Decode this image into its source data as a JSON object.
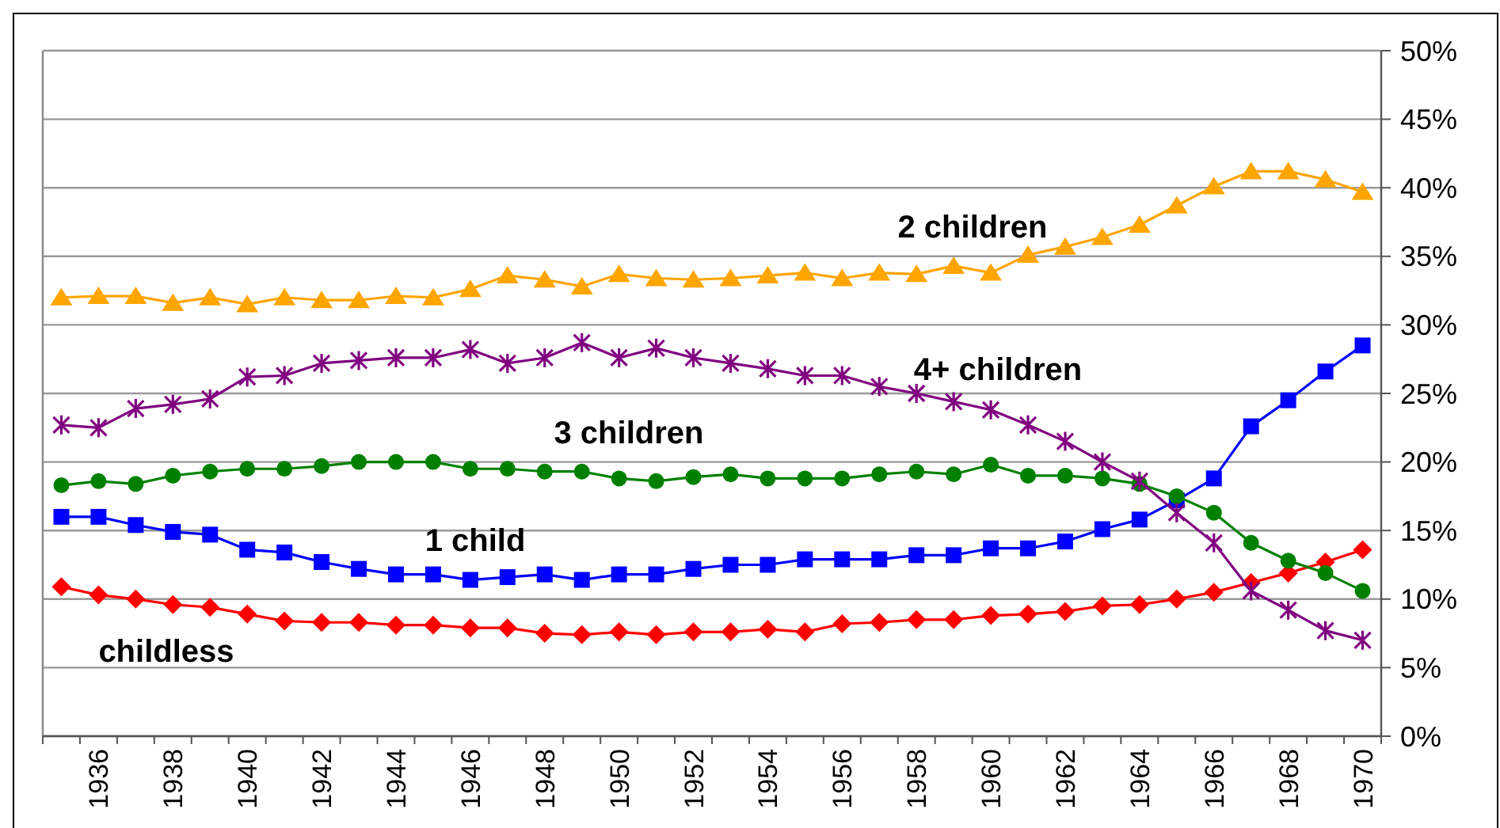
{
  "chart_data": {
    "type": "line",
    "categories": [
      null,
      "1936",
      null,
      "1938",
      null,
      "1940",
      null,
      "1942",
      null,
      "1944",
      null,
      "1946",
      null,
      "1948",
      null,
      "1950",
      null,
      "1952",
      null,
      "1954",
      null,
      "1956",
      null,
      "1958",
      null,
      "1960",
      null,
      "1962",
      null,
      "1964",
      null,
      "1966",
      null,
      "1968",
      null,
      "1970"
    ],
    "series": [
      {
        "name": "childless",
        "color": "#ff0000",
        "marker": "diamond",
        "values": [
          10.9,
          10.3,
          10.0,
          9.6,
          9.4,
          8.9,
          8.4,
          8.3,
          8.3,
          8.1,
          8.1,
          7.9,
          7.9,
          7.5,
          7.4,
          7.6,
          7.4,
          7.6,
          7.6,
          7.8,
          7.6,
          8.2,
          8.3,
          8.5,
          8.5,
          8.8,
          8.9,
          9.1,
          9.5,
          9.6,
          10.0,
          10.5,
          11.2,
          11.9,
          12.7,
          13.6
        ]
      },
      {
        "name": "1 child",
        "color": "#0000ff",
        "marker": "square",
        "values": [
          16.0,
          16.0,
          15.4,
          14.9,
          14.7,
          13.6,
          13.4,
          12.7,
          12.2,
          11.8,
          11.8,
          11.4,
          11.6,
          11.8,
          11.4,
          11.8,
          11.8,
          12.2,
          12.5,
          12.5,
          12.9,
          12.9,
          12.9,
          13.2,
          13.2,
          13.7,
          13.7,
          14.2,
          15.1,
          15.8,
          17.2,
          18.8,
          22.6,
          24.5,
          26.6,
          28.5
        ]
      },
      {
        "name": "2 children",
        "color": "#ffa500",
        "marker": "triangle",
        "values": [
          32.0,
          32.1,
          32.1,
          31.6,
          32.0,
          31.5,
          32.0,
          31.8,
          31.8,
          32.1,
          32.0,
          32.6,
          33.6,
          33.3,
          32.8,
          33.7,
          33.4,
          33.3,
          33.4,
          33.6,
          33.8,
          33.4,
          33.8,
          33.7,
          34.3,
          33.8,
          35.1,
          35.7,
          36.4,
          37.3,
          38.7,
          40.1,
          41.2,
          41.2,
          40.6,
          39.7
        ]
      },
      {
        "name": "3 children",
        "color": "#008000",
        "marker": "circle",
        "values": [
          18.3,
          18.6,
          18.4,
          19.0,
          19.3,
          19.5,
          19.5,
          19.7,
          20.0,
          20.0,
          20.0,
          19.5,
          19.5,
          19.3,
          19.3,
          18.8,
          18.6,
          18.9,
          19.1,
          18.8,
          18.8,
          18.8,
          19.1,
          19.3,
          19.1,
          19.8,
          19.0,
          19.0,
          18.8,
          18.4,
          17.5,
          16.3,
          14.1,
          12.8,
          11.9,
          10.6
        ]
      },
      {
        "name": "4+ children",
        "color": "#800080",
        "marker": "cross",
        "values": [
          22.7,
          22.5,
          23.9,
          24.2,
          24.6,
          26.2,
          26.3,
          27.2,
          27.4,
          27.6,
          27.6,
          28.2,
          27.2,
          27.6,
          28.7,
          27.6,
          28.3,
          27.6,
          27.2,
          26.8,
          26.3,
          26.3,
          25.5,
          25.0,
          24.4,
          23.8,
          22.7,
          21.5,
          20.0,
          18.6,
          16.3,
          14.1,
          10.6,
          9.2,
          7.7,
          7.0
        ]
      }
    ],
    "ylim": [
      0,
      50
    ],
    "yticks": [
      {
        "value": 0,
        "label": "0%"
      },
      {
        "value": 5,
        "label": "5%"
      },
      {
        "value": 10,
        "label": "10%"
      },
      {
        "value": 15,
        "label": "15%"
      },
      {
        "value": 20,
        "label": "20%"
      },
      {
        "value": 25,
        "label": "25%"
      },
      {
        "value": 30,
        "label": "30%"
      },
      {
        "value": 35,
        "label": "35%"
      },
      {
        "value": 40,
        "label": "40%"
      },
      {
        "value": 45,
        "label": "45%"
      },
      {
        "value": 50,
        "label": "50%"
      }
    ],
    "grid": "y"
  }
}
